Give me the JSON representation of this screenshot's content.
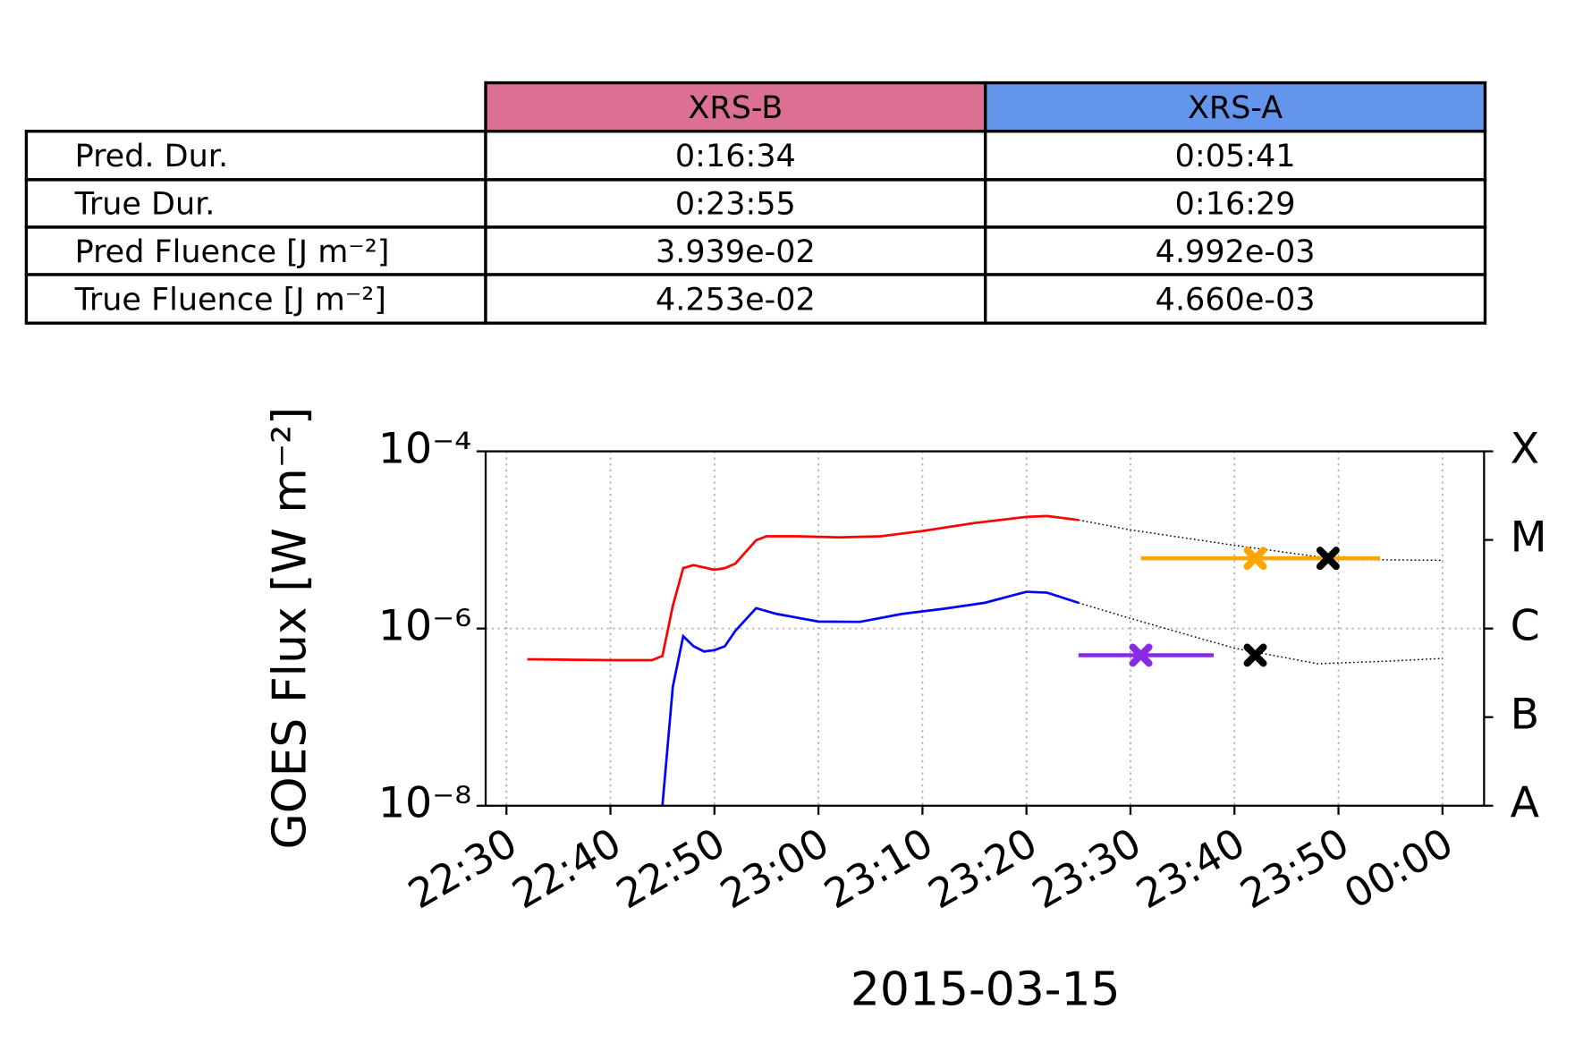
{
  "table": {
    "columns": [
      {
        "label": "XRS-B",
        "color": "#db7093"
      },
      {
        "label": "XRS-A",
        "color": "#6495ed"
      }
    ],
    "rows": [
      {
        "label": "Pred. Dur.",
        "cells": [
          "0:16:34",
          "0:05:41"
        ]
      },
      {
        "label": "True Dur.",
        "cells": [
          "0:23:55",
          "0:16:29"
        ]
      },
      {
        "label": "Pred Fluence [J m⁻²]",
        "cells": [
          "3.939e-02",
          "4.992e-03"
        ]
      },
      {
        "label": "True Fluence [J m⁻²]",
        "cells": [
          "4.253e-02",
          "4.660e-03"
        ]
      }
    ]
  },
  "chart_data": {
    "type": "line",
    "ylabel": "GOES Flux [W m⁻²]",
    "xlabel": "2015-03-15",
    "log_y": true,
    "grid": true,
    "xlim": [
      "22:28",
      "00:04"
    ],
    "xticks": [
      "22:30",
      "22:40",
      "22:50",
      "23:00",
      "23:10",
      "23:20",
      "23:30",
      "23:40",
      "23:50",
      "00:00"
    ],
    "ylim": [
      1e-08,
      0.0001
    ],
    "yticks": [
      {
        "value": 1e-08,
        "label": "10⁻⁸"
      },
      {
        "value": 1e-06,
        "label": "10⁻⁶"
      },
      {
        "value": 0.0001,
        "label": "10⁻⁴"
      }
    ],
    "y2lim": [
      1e-08,
      0.0001
    ],
    "y2ticks": [
      {
        "value": 1e-08,
        "label": "A"
      },
      {
        "value": 1e-07,
        "label": "B"
      },
      {
        "value": 1e-06,
        "label": "C"
      },
      {
        "value": 1e-05,
        "label": "M"
      },
      {
        "value": 0.0001,
        "label": "X"
      }
    ],
    "series": [
      {
        "color": "#ff0000",
        "style": "solid",
        "x": [
          "22:32",
          "22:40",
          "22:44",
          "22:45",
          "22:46",
          "22:47",
          "22:48",
          "22:50",
          "22:51",
          "22:52",
          "22:54",
          "22:55",
          "22:58",
          "23:02",
          "23:06",
          "23:10",
          "23:15",
          "23:20",
          "23:22",
          "23:25"
        ],
        "values": [
          4.5e-07,
          4.4e-07,
          4.4e-07,
          4.9e-07,
          1.8e-06,
          4.8e-06,
          5.2e-06,
          4.6e-06,
          4.8e-06,
          5.4e-06,
          9.9e-06,
          1.1e-05,
          1.1e-05,
          1.07e-05,
          1.1e-05,
          1.26e-05,
          1.55e-05,
          1.82e-05,
          1.86e-05,
          1.68e-05
        ]
      },
      {
        "color": "#0000ff",
        "style": "solid",
        "x": [
          "22:45",
          "22:46",
          "22:47",
          "22:48",
          "22:49",
          "22:50",
          "22:51",
          "22:52",
          "22:54",
          "22:56",
          "23:00",
          "23:04",
          "23:08",
          "23:12",
          "23:16",
          "23:20",
          "23:22",
          "23:25"
        ],
        "values": [
          1e-08,
          2.2e-07,
          8.2e-07,
          6.3e-07,
          5.5e-07,
          5.7e-07,
          6.3e-07,
          9.4e-07,
          1.7e-06,
          1.46e-06,
          1.2e-06,
          1.19e-06,
          1.46e-06,
          1.67e-06,
          1.95e-06,
          2.6e-06,
          2.54e-06,
          1.95e-06
        ]
      },
      {
        "color": "#000000",
        "style": "dotted",
        "x": [
          "23:25",
          "23:30",
          "23:40",
          "23:50",
          "00:00"
        ],
        "values": [
          1.68e-05,
          1.3e-05,
          8.7e-06,
          6e-06,
          5.9e-06
        ]
      },
      {
        "color": "#000000",
        "style": "dotted",
        "x": [
          "23:25",
          "23:30",
          "23:40",
          "23:48",
          "23:55",
          "00:00"
        ],
        "values": [
          1.95e-06,
          1.3e-06,
          6e-07,
          4e-07,
          4.3e-07,
          4.6e-07
        ]
      }
    ],
    "points": [
      {
        "color": "#ffa500",
        "x": "23:42",
        "y": 6.2e-06,
        "xerr": [
          "23:31",
          "23:54"
        ]
      },
      {
        "color": "#000000",
        "x": "23:49",
        "y": 6.2e-06
      },
      {
        "color": "#8a2be2",
        "x": "23:31",
        "y": 5e-07,
        "xerr": [
          "23:25",
          "23:38"
        ]
      },
      {
        "color": "#000000",
        "x": "23:42",
        "y": 5e-07
      }
    ]
  }
}
